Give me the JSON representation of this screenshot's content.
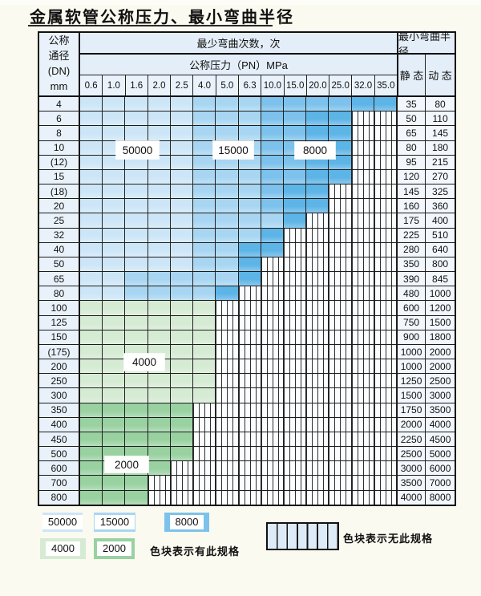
{
  "title": "金属软管公称压力、最小弯曲半径",
  "table": {
    "header": {
      "dn_lines": [
        "公称",
        "通径",
        "(DN)",
        "mm"
      ],
      "bend_cycles": "最少弯曲次数，次",
      "pressure_title": "公称压力（PN）MPa",
      "min_radius": "最小弯曲半径",
      "static_label": "静 态",
      "dynamic_label": "动 态",
      "pressure_cols": [
        "0.6",
        "1.0",
        "1.6",
        "2.0",
        "2.5",
        "4.0",
        "5.0",
        "6.3",
        "10.0",
        "15.0",
        "20.0",
        "25.0",
        "32.0",
        "35.0"
      ]
    },
    "rows": [
      {
        "dn": "4",
        "edge": 13,
        "scheme": "blue",
        "bands": [
          4,
          7
        ],
        "static": "35",
        "dynamic": "80"
      },
      {
        "dn": "6",
        "edge": 11,
        "scheme": "blue",
        "bands": [
          4,
          7
        ],
        "static": "50",
        "dynamic": "110"
      },
      {
        "dn": "8",
        "edge": 11,
        "scheme": "blue",
        "bands": [
          4,
          7
        ],
        "static": "65",
        "dynamic": "145"
      },
      {
        "dn": "10",
        "edge": 11,
        "scheme": "blue",
        "bands": [
          4,
          7
        ],
        "static": "80",
        "dynamic": "180"
      },
      {
        "dn": "(12)",
        "edge": 11,
        "scheme": "blue",
        "bands": [
          4,
          7
        ],
        "static": "95",
        "dynamic": "215"
      },
      {
        "dn": "15",
        "edge": 11,
        "scheme": "blue",
        "bands": [
          4,
          7
        ],
        "static": "120",
        "dynamic": "270"
      },
      {
        "dn": "(18)",
        "edge": 10,
        "scheme": "blue",
        "bands": [
          4,
          7
        ],
        "static": "145",
        "dynamic": "325"
      },
      {
        "dn": "20",
        "edge": 10,
        "scheme": "blue",
        "bands": [
          4,
          7
        ],
        "static": "160",
        "dynamic": "360"
      },
      {
        "dn": "25",
        "edge": 9,
        "scheme": "blue",
        "bands": [
          4,
          8
        ],
        "static": "175",
        "dynamic": "400"
      },
      {
        "dn": "32",
        "edge": 8,
        "scheme": "blue",
        "bands": [
          4,
          7
        ],
        "static": "225",
        "dynamic": "510"
      },
      {
        "dn": "40",
        "edge": 8,
        "scheme": "blue",
        "bands": [
          4,
          6
        ],
        "static": "280",
        "dynamic": "640"
      },
      {
        "dn": "50",
        "edge": 7,
        "scheme": "blue",
        "bands": [
          4,
          6
        ],
        "static": "350",
        "dynamic": "800"
      },
      {
        "dn": "65",
        "edge": 7,
        "scheme": "blue",
        "bands": [
          1,
          6
        ],
        "static": "390",
        "dynamic": "845"
      },
      {
        "dn": "80",
        "edge": 6,
        "scheme": "blue",
        "bands": [
          1,
          5
        ],
        "static": "480",
        "dynamic": "1000"
      },
      {
        "dn": "100",
        "edge": 5,
        "scheme": "green_light",
        "bands": [],
        "static": "600",
        "dynamic": "1200"
      },
      {
        "dn": "125",
        "edge": 5,
        "scheme": "green_light",
        "bands": [],
        "static": "750",
        "dynamic": "1500"
      },
      {
        "dn": "150",
        "edge": 5,
        "scheme": "green_light",
        "bands": [],
        "static": "900",
        "dynamic": "1800"
      },
      {
        "dn": "(175)",
        "edge": 5,
        "scheme": "green_light",
        "bands": [],
        "static": "1000",
        "dynamic": "2000"
      },
      {
        "dn": "200",
        "edge": 5,
        "scheme": "green_light",
        "bands": [],
        "static": "1000",
        "dynamic": "2000"
      },
      {
        "dn": "250",
        "edge": 5,
        "scheme": "green_light",
        "bands": [],
        "static": "1250",
        "dynamic": "2500"
      },
      {
        "dn": "300",
        "edge": 5,
        "scheme": "green_light",
        "bands": [],
        "static": "1500",
        "dynamic": "3000"
      },
      {
        "dn": "350",
        "edge": 4,
        "scheme": "green_dark",
        "bands": [],
        "static": "1750",
        "dynamic": "3500"
      },
      {
        "dn": "400",
        "edge": 4,
        "scheme": "green_dark",
        "bands": [],
        "static": "2000",
        "dynamic": "4000"
      },
      {
        "dn": "450",
        "edge": 4,
        "scheme": "green_dark",
        "bands": [],
        "static": "2250",
        "dynamic": "4500"
      },
      {
        "dn": "500",
        "edge": 4,
        "scheme": "green_dark",
        "bands": [],
        "static": "2500",
        "dynamic": "5000"
      },
      {
        "dn": "600",
        "edge": 3,
        "scheme": "green_dark",
        "bands": [],
        "static": "3000",
        "dynamic": "6000"
      },
      {
        "dn": "700",
        "edge": 2,
        "scheme": "green_dark",
        "bands": [],
        "static": "3500",
        "dynamic": "7000"
      },
      {
        "dn": "800",
        "edge": 2,
        "scheme": "green_dark",
        "bands": [],
        "static": "4000",
        "dynamic": "8000"
      }
    ]
  },
  "overlays": [
    "50000",
    "15000",
    "8000",
    "4000",
    "2000"
  ],
  "legend": {
    "items": [
      {
        "value": "50000",
        "color_key": "blue_light"
      },
      {
        "value": "15000",
        "color_key": "blue_mid"
      },
      {
        "value": "8000",
        "color_key": "blue_dark"
      },
      {
        "value": "4000",
        "color_key": "green_light"
      },
      {
        "value": "2000",
        "color_key": "green_dark"
      }
    ],
    "has_spec_label": "色块表示有此规格",
    "no_spec_label": "色块表示无此规格"
  },
  "colors": {
    "blue_light": "#cde6f7",
    "blue_mid": "#a8d6f2",
    "blue_dark": "#7cc2ec",
    "blue_edge": "#5db4e7",
    "green_light": "#d5ebd3",
    "green_dark": "#99d1a1"
  }
}
